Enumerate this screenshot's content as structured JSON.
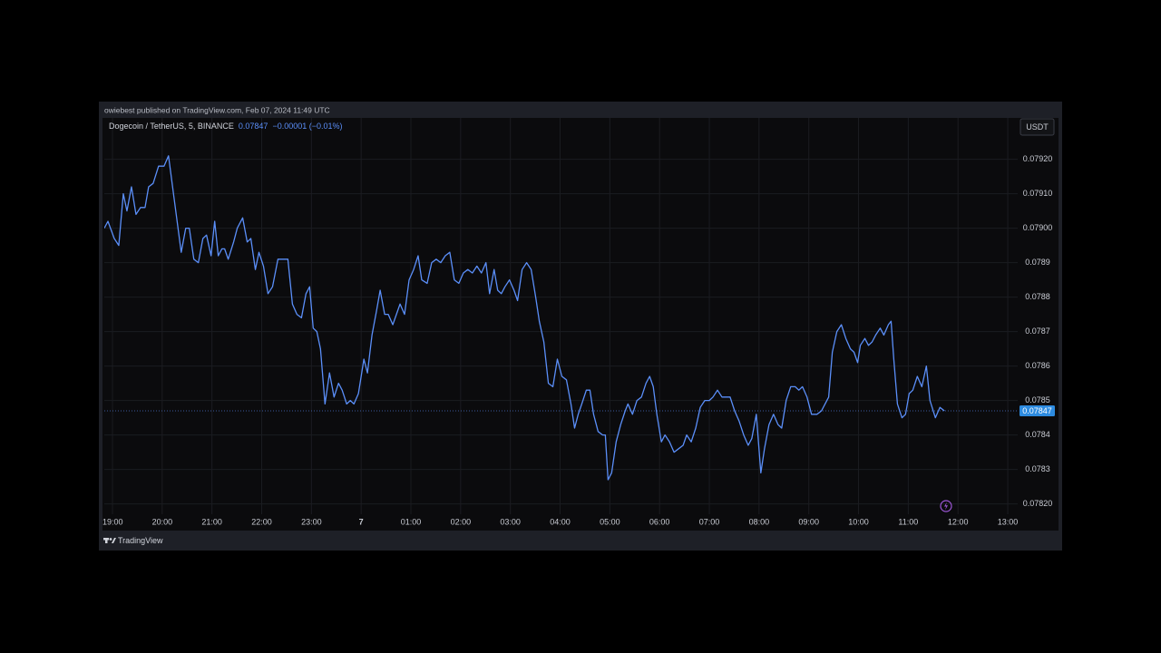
{
  "header": {
    "publisher": "owiebest published on TradingView.com, Feb 07, 2024 11:49 UTC",
    "brand": "TradingView"
  },
  "chart_data": {
    "type": "line",
    "title": "Dogecoin / TetherUS, 5, BINANCE",
    "last_price": 0.07847,
    "change": "−0.00001 (−0.01%)",
    "currency": "USDT",
    "color": "#5b8ff9",
    "grid": true,
    "x": [
      18.836,
      18.909,
      19.036,
      19.127,
      19.218,
      19.291,
      19.382,
      19.473,
      19.564,
      19.655,
      19.727,
      19.818,
      19.927,
      20.036,
      20.127,
      20.236,
      20.382,
      20.473,
      20.545,
      20.636,
      20.727,
      20.818,
      20.891,
      20.982,
      21.055,
      21.127,
      21.2,
      21.255,
      21.327,
      21.436,
      21.509,
      21.618,
      21.709,
      21.782,
      21.873,
      21.945,
      22.036,
      22.127,
      22.218,
      22.327,
      22.418,
      22.527,
      22.618,
      22.709,
      22.8,
      22.891,
      22.964,
      23.036,
      23.109,
      23.182,
      23.273,
      23.364,
      23.455,
      23.545,
      23.618,
      23.709,
      23.782,
      23.855,
      23.945,
      24.055,
      24.127,
      24.218,
      24.309,
      24.382,
      24.473,
      24.545,
      24.636,
      24.709,
      24.782,
      24.873,
      24.964,
      25.055,
      25.145,
      25.218,
      25.327,
      25.418,
      25.509,
      25.6,
      25.691,
      25.782,
      25.873,
      25.964,
      26.055,
      26.145,
      26.236,
      26.327,
      26.418,
      26.509,
      26.582,
      26.673,
      26.745,
      26.818,
      26.891,
      26.982,
      27.073,
      27.145,
      27.236,
      27.327,
      27.418,
      27.509,
      27.582,
      27.673,
      27.764,
      27.855,
      27.945,
      28.036,
      28.127,
      28.218,
      28.291,
      28.364,
      28.436,
      28.527,
      28.6,
      28.673,
      28.764,
      28.855,
      28.909,
      28.964,
      29.036,
      29.127,
      29.218,
      29.309,
      29.364,
      29.455,
      29.545,
      29.636,
      29.727,
      29.8,
      29.873,
      29.945,
      30.036,
      30.109,
      30.2,
      30.291,
      30.382,
      30.473,
      30.545,
      30.636,
      30.727,
      30.818,
      30.909,
      31,
      31.073,
      31.164,
      31.255,
      31.327,
      31.418,
      31.509,
      31.6,
      31.691,
      31.782,
      31.855,
      31.945,
      32.036,
      32.109,
      32.2,
      32.291,
      32.382,
      32.455,
      32.545,
      32.636,
      32.727,
      32.8,
      32.873,
      32.964,
      33.055,
      33.164,
      33.255,
      33.327,
      33.4,
      33.473,
      33.564,
      33.655,
      33.745,
      33.836,
      33.909,
      33.982,
      34.036,
      34.127,
      34.2,
      34.273,
      34.345,
      34.436,
      34.509,
      34.6,
      34.655,
      34.709,
      34.782,
      34.873,
      34.945,
      35.018,
      35.091,
      35.182,
      35.273,
      35.364,
      35.436,
      35.545,
      35.636,
      35.727
    ],
    "values": [
      0.079,
      0.07902,
      0.07897,
      0.07895,
      0.0791,
      0.07905,
      0.07912,
      0.07904,
      0.07906,
      0.07906,
      0.07912,
      0.07913,
      0.07918,
      0.07918,
      0.07921,
      0.07909,
      0.07893,
      0.079,
      0.079,
      0.07891,
      0.0789,
      0.07897,
      0.07898,
      0.07892,
      0.07902,
      0.07892,
      0.07894,
      0.07894,
      0.07891,
      0.07896,
      0.079,
      0.07903,
      0.07896,
      0.07897,
      0.07888,
      0.07893,
      0.07889,
      0.07881,
      0.07883,
      0.07891,
      0.07891,
      0.07891,
      0.07878,
      0.07875,
      0.07874,
      0.07881,
      0.07883,
      0.07871,
      0.0787,
      0.07865,
      0.07849,
      0.07858,
      0.07851,
      0.07855,
      0.07853,
      0.07849,
      0.0785,
      0.07849,
      0.07852,
      0.07862,
      0.07858,
      0.07869,
      0.07876,
      0.07882,
      0.07875,
      0.07875,
      0.07872,
      0.07875,
      0.07878,
      0.07875,
      0.07885,
      0.07888,
      0.07892,
      0.07885,
      0.07884,
      0.0789,
      0.07891,
      0.0789,
      0.07892,
      0.07893,
      0.07885,
      0.07884,
      0.07887,
      0.07888,
      0.07887,
      0.07889,
      0.07887,
      0.0789,
      0.07881,
      0.07888,
      0.07882,
      0.07881,
      0.07883,
      0.07885,
      0.07882,
      0.07879,
      0.07888,
      0.0789,
      0.07888,
      0.0788,
      0.07873,
      0.07867,
      0.07855,
      0.07854,
      0.07862,
      0.07857,
      0.07856,
      0.07849,
      0.07842,
      0.07846,
      0.07849,
      0.07853,
      0.07853,
      0.07846,
      0.07841,
      0.0784,
      0.0784,
      0.07827,
      0.07829,
      0.07838,
      0.07843,
      0.07847,
      0.07849,
      0.07846,
      0.0785,
      0.07851,
      0.07855,
      0.07857,
      0.07854,
      0.07846,
      0.07838,
      0.0784,
      0.07838,
      0.07835,
      0.07836,
      0.07837,
      0.0784,
      0.07838,
      0.07842,
      0.07848,
      0.0785,
      0.0785,
      0.07851,
      0.07853,
      0.07851,
      0.07851,
      0.07851,
      0.07847,
      0.07844,
      0.0784,
      0.07837,
      0.07839,
      0.07846,
      0.07829,
      0.07836,
      0.07843,
      0.07846,
      0.07843,
      0.07842,
      0.0785,
      0.07854,
      0.07854,
      0.07853,
      0.07854,
      0.07851,
      0.07846,
      0.07846,
      0.07847,
      0.07849,
      0.07851,
      0.07864,
      0.0787,
      0.07872,
      0.07868,
      0.07865,
      0.07864,
      0.07861,
      0.07866,
      0.07868,
      0.07866,
      0.07867,
      0.07869,
      0.07871,
      0.07869,
      0.07872,
      0.07873,
      0.07862,
      0.07849,
      0.07845,
      0.07846,
      0.07852,
      0.07853,
      0.07857,
      0.07854,
      0.0786,
      0.0785,
      0.07845,
      0.07848,
      0.07847
    ],
    "xlim": [
      18.836,
      37.2
    ],
    "ylim": [
      0.07817,
      0.07932
    ],
    "xticks": [
      {
        "value": 19,
        "label": "19:00"
      },
      {
        "value": 20,
        "label": "20:00"
      },
      {
        "value": 21,
        "label": "21:00"
      },
      {
        "value": 22,
        "label": "22:00"
      },
      {
        "value": 23,
        "label": "23:00"
      },
      {
        "value": 24,
        "label": "7"
      },
      {
        "value": 25,
        "label": "01:00"
      },
      {
        "value": 26,
        "label": "02:00"
      },
      {
        "value": 27,
        "label": "03:00"
      },
      {
        "value": 28,
        "label": "04:00"
      },
      {
        "value": 29,
        "label": "05:00"
      },
      {
        "value": 30,
        "label": "06:00"
      },
      {
        "value": 31,
        "label": "07:00"
      },
      {
        "value": 32,
        "label": "08:00"
      },
      {
        "value": 33,
        "label": "09:00"
      },
      {
        "value": 34,
        "label": "10:00"
      },
      {
        "value": 35,
        "label": "11:00"
      },
      {
        "value": 36,
        "label": "12:00"
      },
      {
        "value": 37,
        "label": "13:00"
      }
    ],
    "yticks": [
      {
        "value": 0.0782,
        "label": "0.07820"
      },
      0.0783,
      0.0784,
      0.0785,
      0.0786,
      0.0787,
      0.0788,
      0.0789,
      {
        "value": 0.079,
        "label": "0.07900"
      },
      {
        "value": 0.0791,
        "label": "0.07910"
      },
      {
        "value": 0.0792,
        "label": "0.07920"
      }
    ]
  }
}
